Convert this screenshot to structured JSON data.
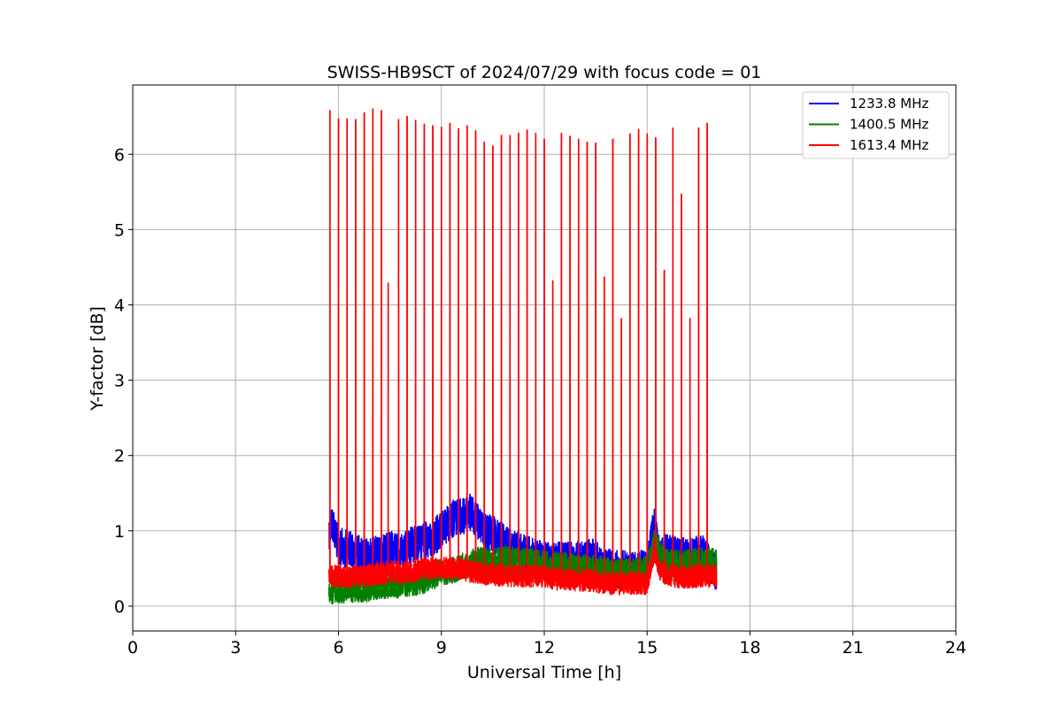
{
  "chart_data": {
    "type": "line",
    "title": "SWISS-HB9SCT of 2024/07/29 with focus code = 01",
    "xlabel": "Universal Time [h]",
    "ylabel": "Y-factor [dB]",
    "xlim": [
      0,
      24
    ],
    "ylim": [
      -0.33,
      6.92
    ],
    "xticks": [
      0,
      3,
      6,
      9,
      12,
      15,
      18,
      21,
      24
    ],
    "yticks": [
      0,
      1,
      2,
      3,
      4,
      5,
      6
    ],
    "grid": true,
    "legend_position": "top-right",
    "data_start_h": 5.72,
    "data_end_h": 17.02,
    "series": [
      {
        "name": "1233.8 MHz",
        "color": "#0000ff",
        "baseline": [
          [
            5.72,
            1.0
          ],
          [
            5.8,
            1.1
          ],
          [
            6.0,
            0.8
          ],
          [
            6.3,
            0.75
          ],
          [
            6.6,
            0.7
          ],
          [
            6.9,
            0.65
          ],
          [
            7.2,
            0.7
          ],
          [
            7.5,
            0.75
          ],
          [
            7.8,
            0.7
          ],
          [
            8.1,
            0.8
          ],
          [
            8.4,
            0.85
          ],
          [
            8.7,
            0.9
          ],
          [
            9.0,
            1.0
          ],
          [
            9.3,
            1.15
          ],
          [
            9.6,
            1.2
          ],
          [
            9.9,
            1.25
          ],
          [
            10.2,
            1.0
          ],
          [
            10.5,
            0.95
          ],
          [
            10.8,
            0.85
          ],
          [
            11.1,
            0.75
          ],
          [
            11.4,
            0.7
          ],
          [
            11.7,
            0.65
          ],
          [
            12.0,
            0.6
          ],
          [
            12.5,
            0.6
          ],
          [
            13.0,
            0.62
          ],
          [
            13.4,
            0.65
          ],
          [
            13.7,
            0.55
          ],
          [
            14.0,
            0.5
          ],
          [
            14.5,
            0.48
          ],
          [
            15.0,
            0.5
          ],
          [
            15.2,
            1.1
          ],
          [
            15.4,
            0.7
          ],
          [
            15.8,
            0.7
          ],
          [
            16.2,
            0.65
          ],
          [
            16.6,
            0.7
          ],
          [
            17.0,
            0.45
          ]
        ],
        "band": 0.25,
        "min": 0.0,
        "max": 1.67
      },
      {
        "name": "1400.5 MHz",
        "color": "#008000",
        "baseline": [
          [
            5.72,
            0.2
          ],
          [
            6.0,
            0.22
          ],
          [
            6.5,
            0.22
          ],
          [
            7.0,
            0.25
          ],
          [
            7.5,
            0.28
          ],
          [
            8.0,
            0.3
          ],
          [
            8.5,
            0.35
          ],
          [
            9.0,
            0.45
          ],
          [
            9.5,
            0.5
          ],
          [
            10.0,
            0.6
          ],
          [
            10.5,
            0.6
          ],
          [
            11.0,
            0.62
          ],
          [
            11.5,
            0.6
          ],
          [
            12.0,
            0.55
          ],
          [
            12.5,
            0.55
          ],
          [
            13.0,
            0.5
          ],
          [
            13.5,
            0.5
          ],
          [
            14.0,
            0.45
          ],
          [
            14.5,
            0.45
          ],
          [
            15.0,
            0.5
          ],
          [
            15.2,
            0.85
          ],
          [
            15.5,
            0.6
          ],
          [
            16.0,
            0.55
          ],
          [
            16.5,
            0.6
          ],
          [
            17.0,
            0.6
          ]
        ],
        "band": 0.18,
        "min": 0.0,
        "max": 0.97
      },
      {
        "name": "1613.4 MHz",
        "color": "#ff0000",
        "baseline": [
          [
            5.72,
            0.4
          ],
          [
            6.0,
            0.4
          ],
          [
            6.5,
            0.38
          ],
          [
            7.0,
            0.42
          ],
          [
            7.5,
            0.45
          ],
          [
            8.0,
            0.45
          ],
          [
            8.5,
            0.5
          ],
          [
            9.0,
            0.5
          ],
          [
            9.5,
            0.5
          ],
          [
            10.0,
            0.45
          ],
          [
            10.5,
            0.42
          ],
          [
            11.0,
            0.4
          ],
          [
            11.5,
            0.4
          ],
          [
            12.0,
            0.4
          ],
          [
            12.5,
            0.35
          ],
          [
            13.0,
            0.35
          ],
          [
            13.5,
            0.33
          ],
          [
            14.0,
            0.3
          ],
          [
            14.5,
            0.3
          ],
          [
            15.0,
            0.3
          ],
          [
            15.2,
            0.75
          ],
          [
            15.4,
            0.45
          ],
          [
            16.0,
            0.38
          ],
          [
            16.5,
            0.4
          ],
          [
            17.0,
            0.4
          ]
        ],
        "band": 0.15,
        "min": 0.0,
        "peaks": [
          [
            5.75,
            6.58
          ],
          [
            6.0,
            6.47
          ],
          [
            6.25,
            6.47
          ],
          [
            6.5,
            6.46
          ],
          [
            6.75,
            6.55
          ],
          [
            7.0,
            6.6
          ],
          [
            7.25,
            6.58
          ],
          [
            7.45,
            4.29
          ],
          [
            7.75,
            6.46
          ],
          [
            8.0,
            6.5
          ],
          [
            8.25,
            6.45
          ],
          [
            8.5,
            6.4
          ],
          [
            8.75,
            6.38
          ],
          [
            9.0,
            6.36
          ],
          [
            9.25,
            6.41
          ],
          [
            9.5,
            6.34
          ],
          [
            9.75,
            6.38
          ],
          [
            10.0,
            6.31
          ],
          [
            10.25,
            6.16
          ],
          [
            10.5,
            6.11
          ],
          [
            10.75,
            6.25
          ],
          [
            11.0,
            6.25
          ],
          [
            11.25,
            6.28
          ],
          [
            11.5,
            6.32
          ],
          [
            11.75,
            6.28
          ],
          [
            12.0,
            6.2
          ],
          [
            12.25,
            4.32
          ],
          [
            12.5,
            6.28
          ],
          [
            12.75,
            6.24
          ],
          [
            13.0,
            6.2
          ],
          [
            13.25,
            6.16
          ],
          [
            13.5,
            6.15
          ],
          [
            13.75,
            4.37
          ],
          [
            14.0,
            6.2
          ],
          [
            14.25,
            3.82
          ],
          [
            14.5,
            6.27
          ],
          [
            14.75,
            6.33
          ],
          [
            15.0,
            6.27
          ],
          [
            15.25,
            6.22
          ],
          [
            15.5,
            4.46
          ],
          [
            15.75,
            6.35
          ],
          [
            16.0,
            5.47
          ],
          [
            16.25,
            3.82
          ],
          [
            16.5,
            6.35
          ],
          [
            16.75,
            6.41
          ]
        ]
      }
    ]
  }
}
